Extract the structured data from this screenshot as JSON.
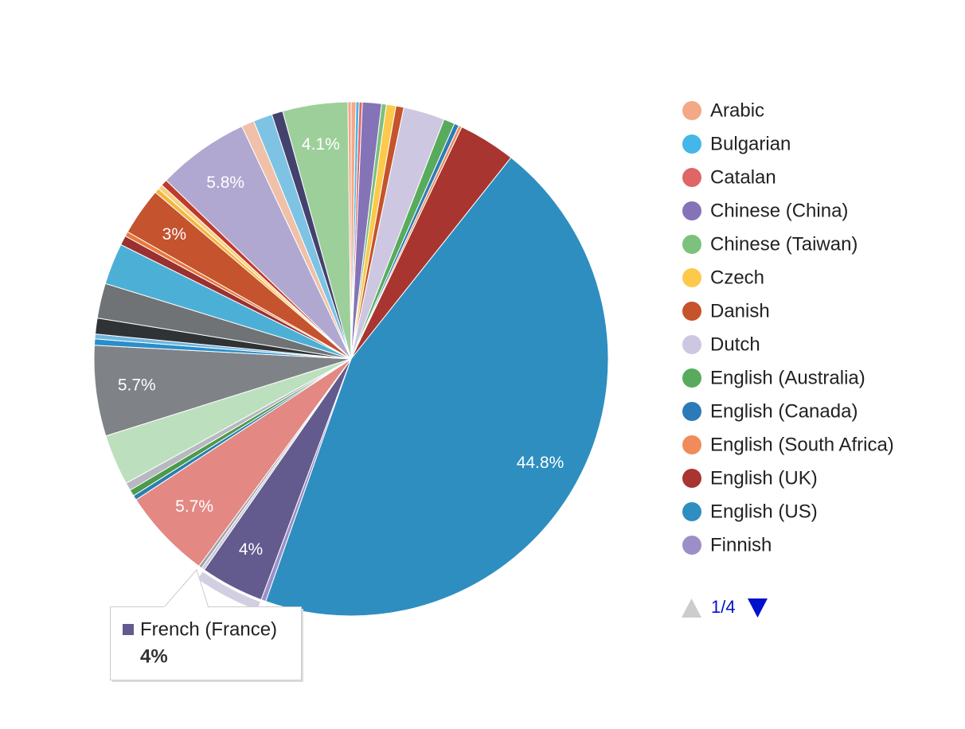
{
  "chart_data": {
    "type": "pie",
    "categories": [
      "Arabic",
      "Bulgarian",
      "Catalan",
      "Chinese (China)",
      "Chinese (Taiwan)",
      "Czech",
      "Danish",
      "Dutch",
      "English (Australia)",
      "English (Canada)",
      "English (South Africa)",
      "English (UK)",
      "English (US)",
      "Finnish",
      "French (France)",
      null,
      null,
      null,
      null,
      null,
      null,
      null,
      null,
      null,
      null,
      null,
      null,
      null,
      null,
      null,
      null,
      null,
      null,
      null,
      null,
      null,
      null,
      null,
      null,
      null
    ],
    "values": [
      0.3,
      0.2,
      0.2,
      1.2,
      0.3,
      0.6,
      0.5,
      2.6,
      0.7,
      0.3,
      0.2,
      3.6,
      44.8,
      0.3,
      4,
      0.2,
      0.2,
      5.7,
      0.3,
      0.4,
      0.5,
      3.2,
      5.7,
      0.4,
      0.3,
      1.0,
      2.2,
      2.6,
      0.6,
      0.3,
      3.0,
      0.3,
      0.3,
      0.4,
      5.8,
      0.8,
      1.2,
      0.7,
      4.1,
      0.2
    ],
    "value_labels": [
      null,
      null,
      null,
      null,
      null,
      null,
      null,
      null,
      null,
      null,
      null,
      null,
      "44.8%",
      null,
      "4%",
      null,
      null,
      "5.7%",
      null,
      null,
      null,
      null,
      "5.7%",
      null,
      null,
      null,
      null,
      null,
      null,
      null,
      "3%",
      null,
      null,
      null,
      "5.8%",
      null,
      null,
      null,
      "4.1%",
      null
    ],
    "colors": [
      "#f4a886",
      "#45b6e8",
      "#e06666",
      "#8573b8",
      "#7cc17c",
      "#fcc94a",
      "#c5532b",
      "#cdc7e2",
      "#58ab5c",
      "#2b7bb9",
      "#f08c5a",
      "#a83530",
      "#2e8ec0",
      "#9c8fc8",
      "#635a8e",
      "#c9c9d9",
      "#a0a0a8",
      "#e38883",
      "#2a7fb0",
      "#4c9a4c",
      "#b8b8c0",
      "#bce0be",
      "#7f8286",
      "#2a8ec9",
      "#6fb6de",
      "#2f3336",
      "#6f7376",
      "#4cb0d6",
      "#9a3030",
      "#e8783a",
      "#c4532e",
      "#f7b640",
      "#f7d080",
      "#c0392b",
      "#b0a8d0",
      "#f0c0a8",
      "#7ec3e3",
      "#43426e",
      "#9dcf9b",
      "#f4a582"
    ],
    "legend": {
      "position": "right",
      "page": "1/4"
    }
  }
}
